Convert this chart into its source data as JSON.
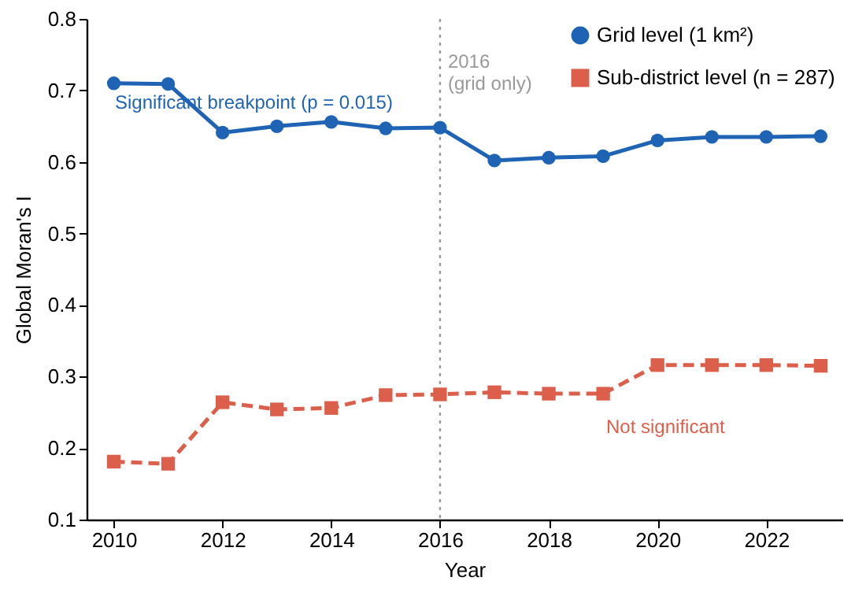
{
  "chart_data": {
    "type": "line",
    "xlabel": "Year",
    "ylabel": "Global Moran's I",
    "x": [
      2010,
      2011,
      2012,
      2013,
      2014,
      2015,
      2016,
      2017,
      2018,
      2019,
      2020,
      2021,
      2022,
      2023
    ],
    "series": [
      {
        "name": "Grid level (1 km²)",
        "color": "#1f64b4",
        "marker": "circle",
        "line_style": "solid",
        "values": [
          0.71,
          0.709,
          0.641,
          0.65,
          0.656,
          0.647,
          0.648,
          0.602,
          0.606,
          0.608,
          0.63,
          0.635,
          0.635,
          0.636
        ]
      },
      {
        "name": "Sub-district level (n = 287)",
        "color": "#dc5f4b",
        "marker": "square",
        "line_style": "dashed",
        "values": [
          0.181,
          0.178,
          0.264,
          0.254,
          0.256,
          0.274,
          0.275,
          0.278,
          0.276,
          0.276,
          0.316,
          0.316,
          0.316,
          0.315
        ]
      }
    ],
    "xlim": [
      2009.5,
      2023.4
    ],
    "xticks": [
      2010,
      2012,
      2014,
      2016,
      2018,
      2020,
      2022
    ],
    "ylim": [
      0.1,
      0.8
    ],
    "yticks": [
      0.1,
      0.2,
      0.3,
      0.4,
      0.5,
      0.6,
      0.7,
      0.8
    ],
    "ref_lines": [
      {
        "axis": "x",
        "value": 2016,
        "label": "2016\n(grid only)",
        "color": "#999999",
        "line_style": "dotted"
      }
    ],
    "annotations": [
      "Significant breakpoint (p = 0.015)",
      "Not significant"
    ],
    "grid": false,
    "legend": "top right"
  }
}
